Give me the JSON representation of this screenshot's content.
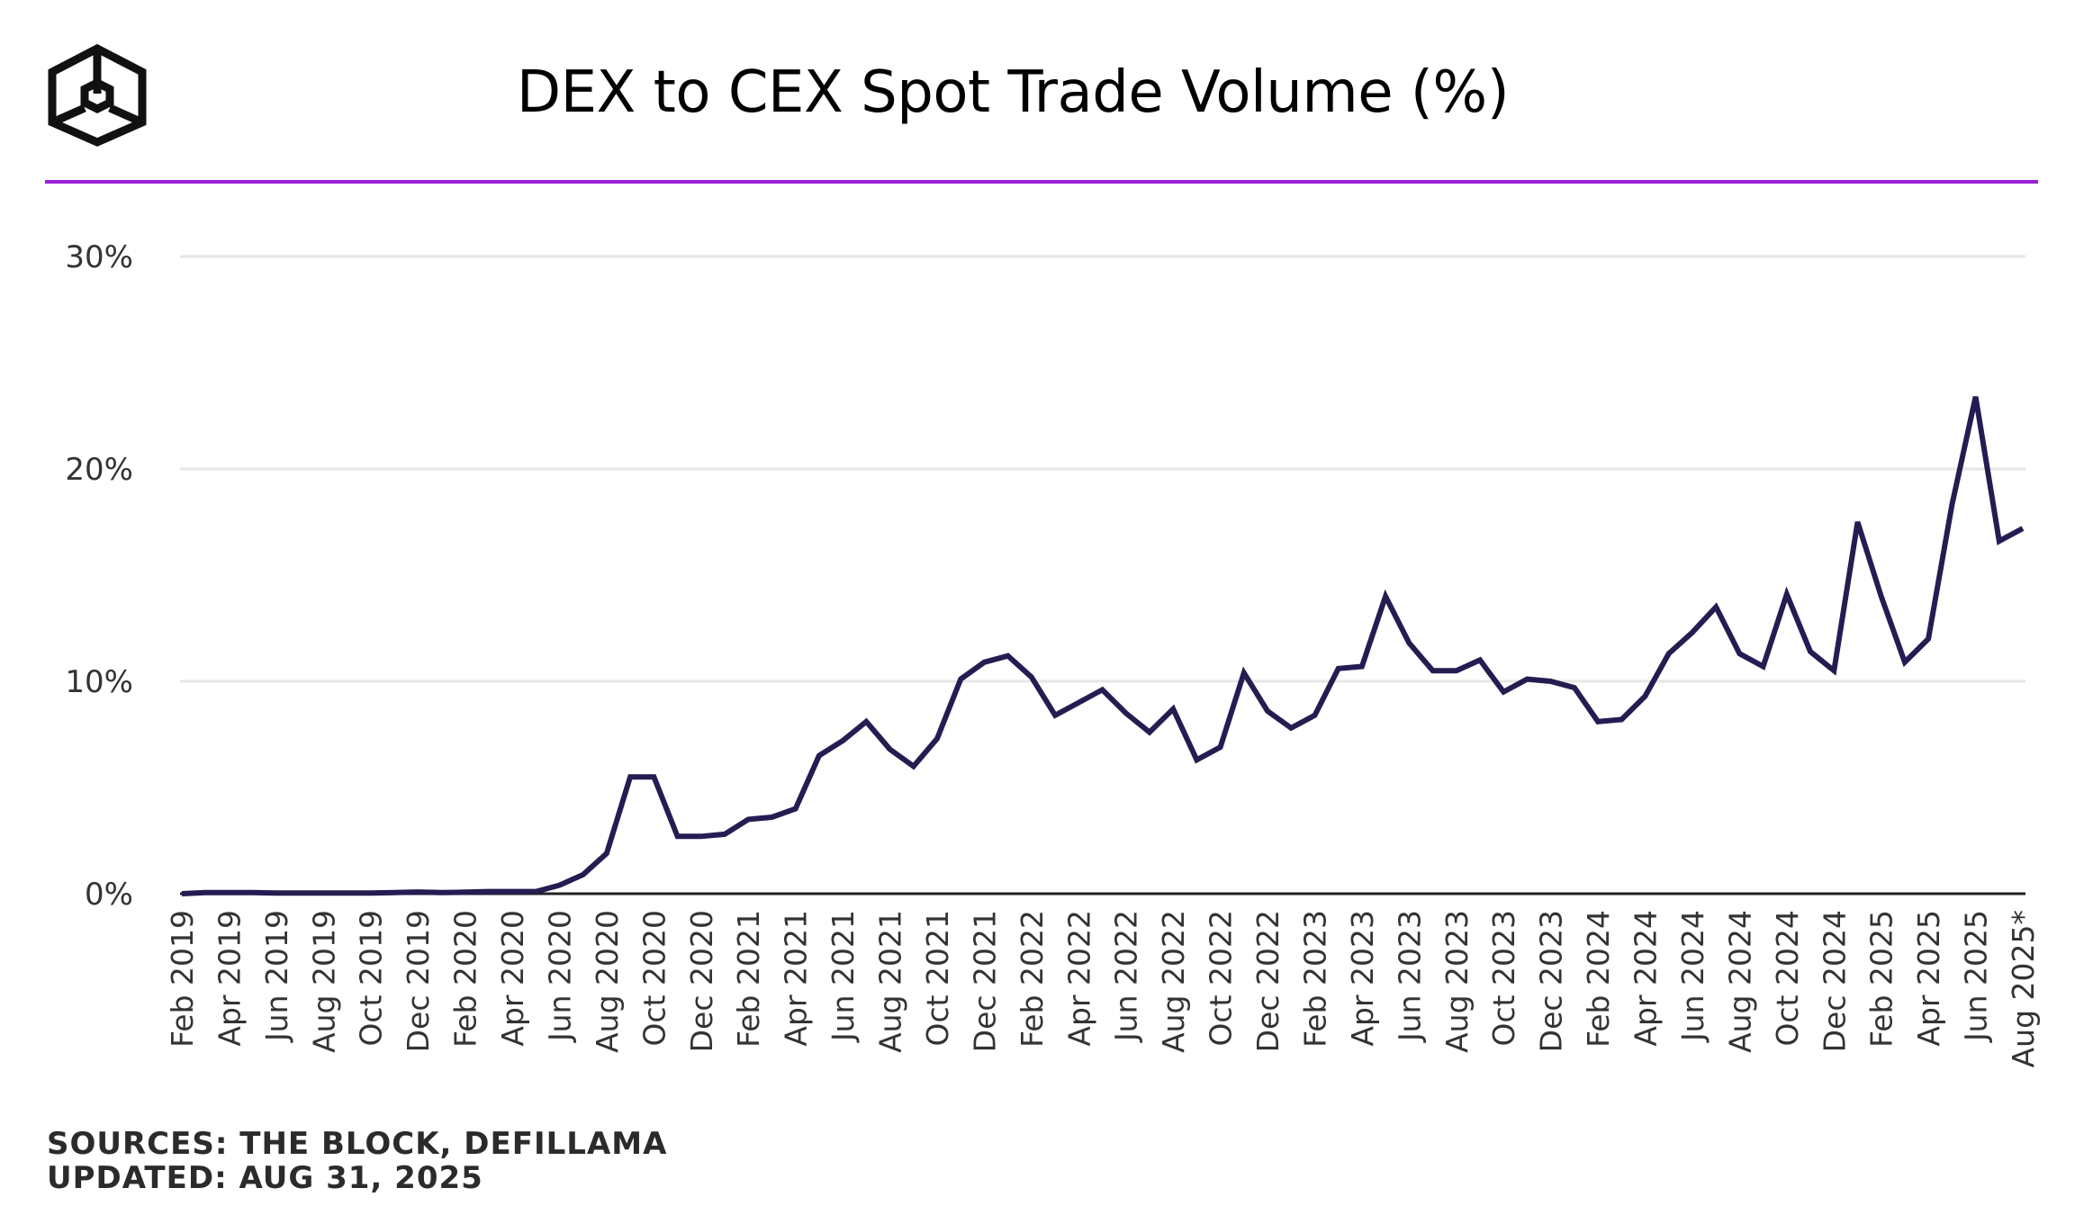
{
  "header": {
    "title": "DEX to CEX Spot Trade Volume (%)",
    "logo_icon": "the-block-cube-icon",
    "accent_color": "#9b1fd6"
  },
  "footer": {
    "sources": "SOURCES: THE BLOCK, DEFILLAMA",
    "updated": "UPDATED: AUG 31, 2025"
  },
  "chart_data": {
    "type": "line",
    "title": "DEX to CEX Spot Trade Volume (%)",
    "xlabel": "",
    "ylabel": "",
    "ylim": [
      0,
      30
    ],
    "y_ticks": [
      0,
      10,
      20,
      30
    ],
    "y_tick_labels": [
      "0%",
      "10%",
      "20%",
      "30%"
    ],
    "grid": true,
    "line_color": "#251d52",
    "x_tick_labels": [
      "Feb 2019",
      "Apr 2019",
      "Jun 2019",
      "Aug 2019",
      "Oct 2019",
      "Dec 2019",
      "Feb 2020",
      "Apr 2020",
      "Jun 2020",
      "Aug 2020",
      "Oct 2020",
      "Dec 2020",
      "Feb 2021",
      "Apr 2021",
      "Jun 2021",
      "Aug 2021",
      "Oct 2021",
      "Dec 2021",
      "Feb 2022",
      "Apr 2022",
      "Jun 2022",
      "Aug 2022",
      "Oct 2022",
      "Dec 2022",
      "Feb 2023",
      "Apr 2023",
      "Jun 2023",
      "Aug 2023",
      "Oct 2023",
      "Dec 2023",
      "Feb 2024",
      "Apr 2024",
      "Jun 2024",
      "Aug 2024",
      "Oct 2024",
      "Dec 2024",
      "Feb 2025",
      "Apr 2025",
      "Jun 2025",
      "Aug 2025*"
    ],
    "x": [
      "Feb 2019",
      "Mar 2019",
      "Apr 2019",
      "May 2019",
      "Jun 2019",
      "Jul 2019",
      "Aug 2019",
      "Sep 2019",
      "Oct 2019",
      "Nov 2019",
      "Dec 2019",
      "Jan 2020",
      "Feb 2020",
      "Mar 2020",
      "Apr 2020",
      "May 2020",
      "Jun 2020",
      "Jul 2020",
      "Aug 2020",
      "Sep 2020",
      "Oct 2020",
      "Nov 2020",
      "Dec 2020",
      "Jan 2021",
      "Feb 2021",
      "Mar 2021",
      "Apr 2021",
      "May 2021",
      "Jun 2021",
      "Jul 2021",
      "Aug 2021",
      "Sep 2021",
      "Oct 2021",
      "Nov 2021",
      "Dec 2021",
      "Jan 2022",
      "Feb 2022",
      "Mar 2022",
      "Apr 2022",
      "May 2022",
      "Jun 2022",
      "Jul 2022",
      "Aug 2022",
      "Sep 2022",
      "Oct 2022",
      "Nov 2022",
      "Dec 2022",
      "Jan 2023",
      "Feb 2023",
      "Mar 2023",
      "Apr 2023",
      "May 2023",
      "Jun 2023",
      "Jul 2023",
      "Aug 2023",
      "Sep 2023",
      "Oct 2023",
      "Nov 2023",
      "Dec 2023",
      "Jan 2024",
      "Feb 2024",
      "Mar 2024",
      "Apr 2024",
      "May 2024",
      "Jun 2024",
      "Jul 2024",
      "Aug 2024",
      "Sep 2024",
      "Oct 2024",
      "Nov 2024",
      "Dec 2024",
      "Jan 2025",
      "Feb 2025",
      "Mar 2025",
      "Apr 2025",
      "May 2025",
      "Jun 2025",
      "Jul 2025",
      "Aug 2025*"
    ],
    "values": [
      0.0,
      0.05,
      0.05,
      0.05,
      0.03,
      0.03,
      0.03,
      0.03,
      0.03,
      0.05,
      0.08,
      0.05,
      0.07,
      0.1,
      0.1,
      0.1,
      0.4,
      0.9,
      1.9,
      5.5,
      5.5,
      2.7,
      2.7,
      2.8,
      3.5,
      3.6,
      4.0,
      6.5,
      7.2,
      8.1,
      6.8,
      6.0,
      7.3,
      10.1,
      10.9,
      11.2,
      10.2,
      8.4,
      9.0,
      9.6,
      8.5,
      7.6,
      8.7,
      6.3,
      6.9,
      10.4,
      8.6,
      7.8,
      8.4,
      10.6,
      10.7,
      14.0,
      11.8,
      10.5,
      10.5,
      11.0,
      9.5,
      10.1,
      10.0,
      9.7,
      8.1,
      8.2,
      9.3,
      11.3,
      12.3,
      13.5,
      11.3,
      10.7,
      14.1,
      11.4,
      10.5,
      17.5,
      14.0,
      10.9,
      12.0,
      18.3,
      23.4,
      16.6,
      17.2
    ]
  }
}
